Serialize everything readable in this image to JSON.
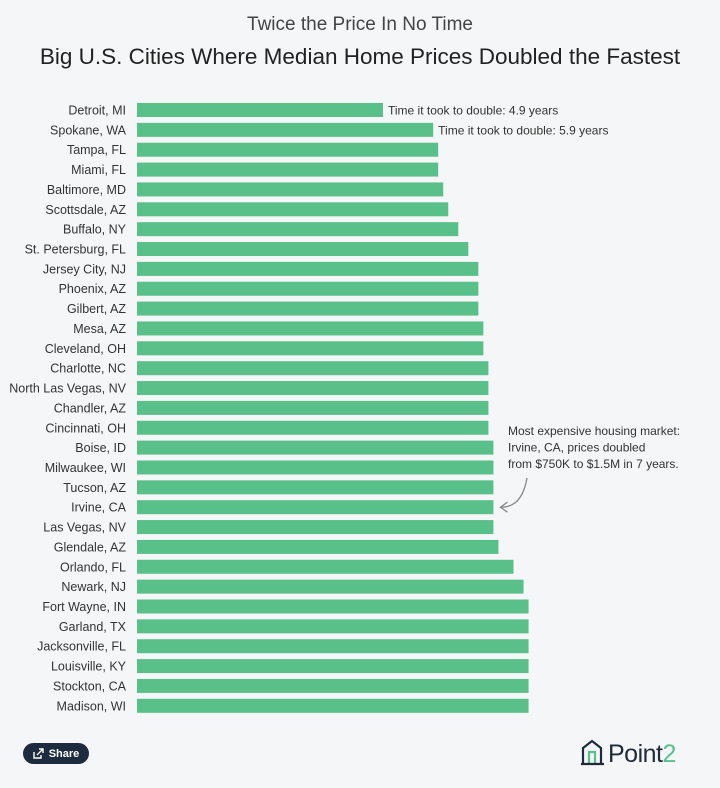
{
  "header": {
    "subtitle": "Twice the Price In No Time",
    "title": "Big U.S. Cities Where Median Home Prices Doubled the Fastest"
  },
  "chart_data": {
    "type": "bar",
    "orientation": "horizontal",
    "unit": "years",
    "bar_color": "#5ac08a",
    "categories": [
      "Detroit, MI",
      "Spokane, WA",
      "Tampa, FL",
      "Miami, FL",
      "Baltimore, MD",
      "Scottsdale, AZ",
      "Buffalo, NY",
      "St. Petersburg, FL",
      "Jersey City, NJ",
      "Phoenix, AZ",
      "Gilbert, AZ",
      "Mesa, AZ",
      "Cleveland, OH",
      "Charlotte, NC",
      "North Las Vegas, NV",
      "Chandler, AZ",
      "Cincinnati, OH",
      "Boise, ID",
      "Milwaukee, WI",
      "Tucson, AZ",
      "Irvine, CA",
      "Las Vegas, NV",
      "Glendale, AZ",
      "Orlando, FL",
      "Newark, NJ",
      "Fort Wayne, IN",
      "Garland, TX",
      "Jacksonville, FL",
      "Louisville, KY",
      "Stockton, CA",
      "Madison, WI"
    ],
    "values": [
      4.9,
      5.9,
      6.0,
      6.0,
      6.1,
      6.2,
      6.4,
      6.6,
      6.8,
      6.8,
      6.8,
      6.9,
      6.9,
      7.0,
      7.0,
      7.0,
      7.0,
      7.1,
      7.1,
      7.1,
      7.1,
      7.1,
      7.2,
      7.5,
      7.7,
      7.8,
      7.8,
      7.8,
      7.8,
      7.8,
      7.8
    ],
    "bar_labels": [
      {
        "index": 0,
        "text": "Time it took to double: 4.9 years"
      },
      {
        "index": 1,
        "text": "Time it took to double: 5.9 years"
      }
    ],
    "annotation": {
      "target": "Irvine, CA",
      "lines": [
        "Most expensive housing market:",
        "Irvine, CA, prices doubled",
        "from $750K to $1.5M in 7 years."
      ]
    }
  },
  "footer": {
    "share_label": "Share",
    "logo_text": "Point",
    "logo_suffix": "2"
  }
}
